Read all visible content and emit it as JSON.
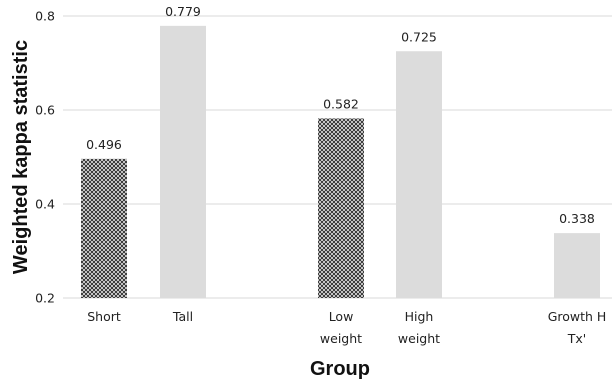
{
  "chart_data": {
    "type": "bar",
    "xlabel": "Group",
    "ylabel": "Weighted kappa statistic",
    "ylim": [
      0.2,
      0.8
    ],
    "yticks": [
      "0.2",
      "0.4",
      "0.6",
      "0.8"
    ],
    "grid": "horizontal",
    "categories": [
      [
        "Short"
      ],
      [
        "Tall"
      ],
      [
        "Low",
        "weight"
      ],
      [
        "High",
        "weight"
      ],
      [
        "Growth H",
        "Tx'"
      ]
    ],
    "values": [
      0.496,
      0.779,
      0.582,
      0.725,
      0.338
    ],
    "labels": [
      "0.496",
      "0.779",
      "0.582",
      "0.725",
      "0.338"
    ],
    "patterns": [
      "hatched",
      "solid",
      "hatched",
      "solid",
      "solid"
    ],
    "colors": {
      "solid": "#dcdcdc",
      "hatch_dark": "#333333",
      "hatch_light": "#ffffff",
      "grid": "#d9d9d9"
    }
  }
}
